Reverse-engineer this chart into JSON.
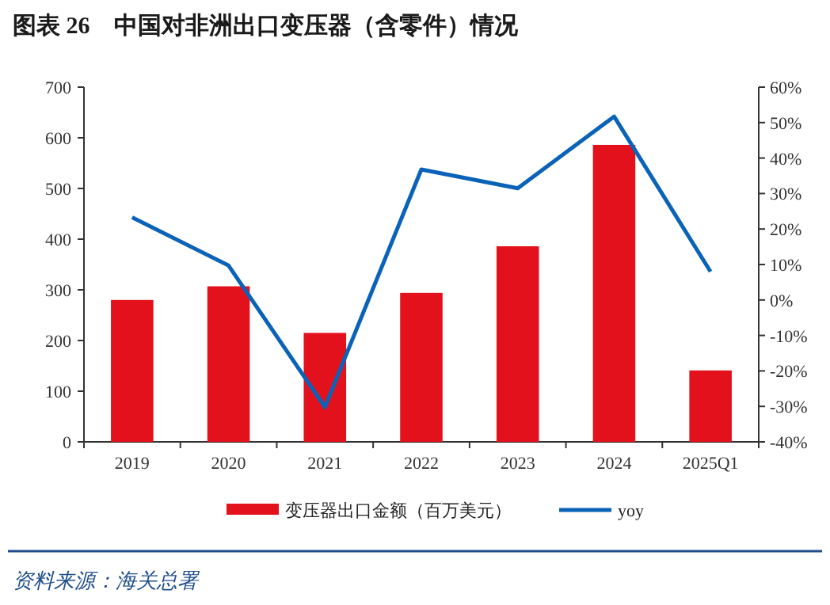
{
  "chart_data": {
    "type": "bar",
    "title": "图表 26　中国对非洲出口变压器（含零件）情况",
    "categories": [
      "2019",
      "2020",
      "2021",
      "2022",
      "2023",
      "2024",
      "2025Q1"
    ],
    "series": [
      {
        "name": "变压器出口金额（百万美元）",
        "color": "#e3111b",
        "values": [
          280,
          307,
          215,
          294,
          386,
          586,
          141
        ]
      },
      {
        "name": "yoy",
        "type": "line",
        "axis": "y2",
        "color": "#0a63b8",
        "values": [
          23.3,
          9.7,
          -30.2,
          36.8,
          31.5,
          51.7,
          8.0
        ]
      }
    ],
    "ylim": [
      0,
      700
    ],
    "yticks": [
      0,
      100,
      200,
      300,
      400,
      500,
      600,
      700
    ],
    "y2lim": [
      -40,
      60
    ],
    "y2ticks": [
      {
        "value": -40,
        "label": "-40%"
      },
      {
        "value": -30,
        "label": "-30%"
      },
      {
        "value": -20,
        "label": "-20%"
      },
      {
        "value": -10,
        "label": "-10%"
      },
      {
        "value": 0,
        "label": "0%"
      },
      {
        "value": 10,
        "label": "10%"
      },
      {
        "value": 20,
        "label": "20%"
      },
      {
        "value": 30,
        "label": "30%"
      },
      {
        "value": 40,
        "label": "40%"
      },
      {
        "value": 50,
        "label": "50%"
      },
      {
        "value": 60,
        "label": "60%"
      }
    ],
    "legend": "bottom",
    "annotations": [
      "资料来源：海关总署"
    ]
  }
}
